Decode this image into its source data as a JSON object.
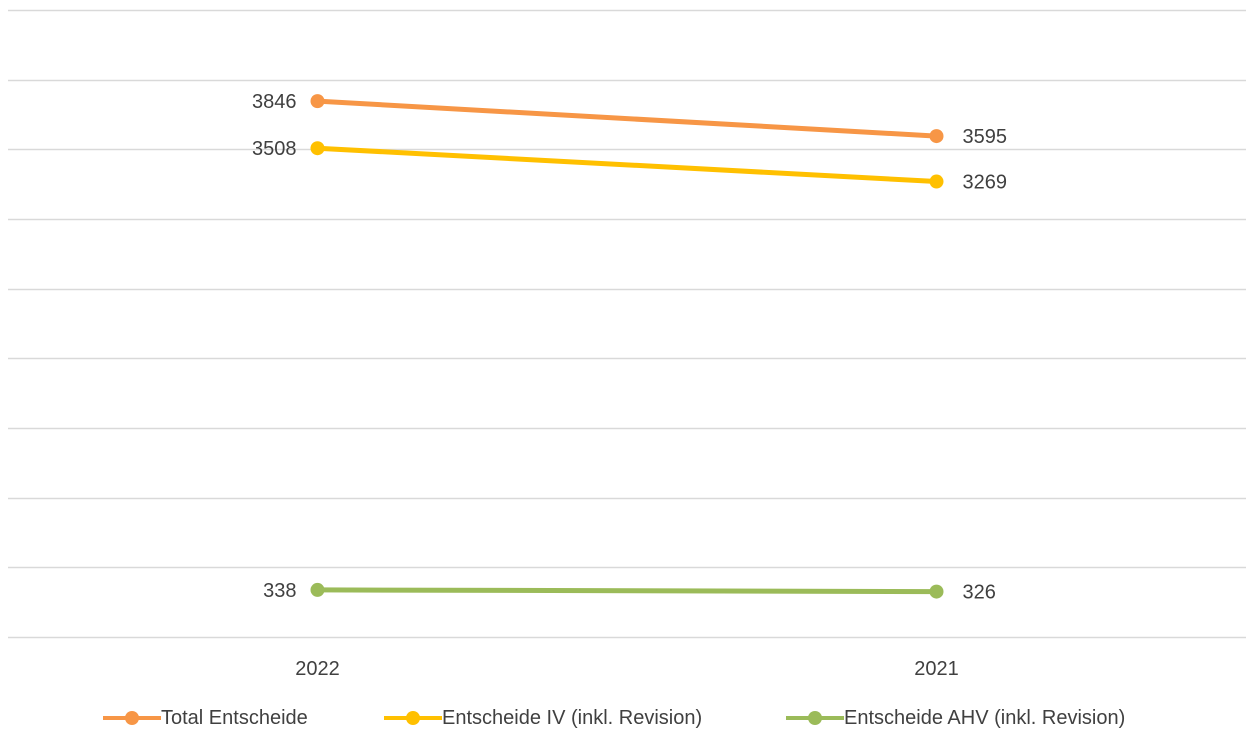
{
  "chart_data": {
    "type": "line",
    "categories": [
      "2022",
      "2021"
    ],
    "ylim": [
      0,
      4500
    ],
    "grid": true,
    "legend_position": "bottom",
    "series": [
      {
        "name": "Total Entscheide",
        "values": [
          3846,
          3595
        ],
        "color": "#F79646"
      },
      {
        "name": "Entscheide IV (inkl. Revision)",
        "values": [
          3508,
          3269
        ],
        "color": "#FFC000"
      },
      {
        "name": "Entscheide AHV (inkl. Revision)",
        "values": [
          338,
          326
        ],
        "color": "#9BBB59"
      }
    ]
  }
}
